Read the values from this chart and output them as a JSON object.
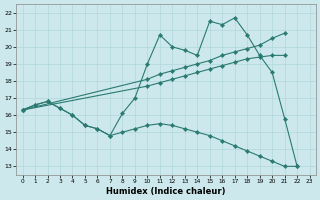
{
  "xlabel": "Humidex (Indice chaleur)",
  "bg_color": "#cce8ec",
  "line_color": "#2a7a72",
  "grid_color": "#b0d8dc",
  "xlim": [
    -0.5,
    23.5
  ],
  "ylim": [
    12.5,
    22.5
  ],
  "xticks": [
    0,
    1,
    2,
    3,
    4,
    5,
    6,
    7,
    8,
    9,
    10,
    11,
    12,
    13,
    14,
    15,
    16,
    17,
    18,
    19,
    20,
    21,
    22,
    23
  ],
  "yticks": [
    13,
    14,
    15,
    16,
    17,
    18,
    19,
    20,
    21,
    22
  ],
  "series": [
    {
      "x": [
        0,
        1,
        2,
        3,
        4,
        5,
        6,
        7,
        8,
        9,
        10,
        11,
        12,
        13,
        14,
        15,
        16,
        17,
        18,
        19,
        20,
        21,
        22
      ],
      "y": [
        16.3,
        16.6,
        16.8,
        16.4,
        16.0,
        15.4,
        15.2,
        14.8,
        15.0,
        15.2,
        15.4,
        15.5,
        15.4,
        15.2,
        15.0,
        14.8,
        14.5,
        14.2,
        13.9,
        13.6,
        13.3,
        13.0,
        13.0
      ]
    },
    {
      "x": [
        0,
        1,
        2,
        3,
        4,
        5,
        6,
        7,
        8,
        9,
        10,
        11,
        12,
        13,
        14,
        15,
        16,
        17,
        18,
        19,
        20,
        21,
        22
      ],
      "y": [
        16.3,
        16.6,
        16.8,
        16.4,
        16.0,
        15.4,
        15.2,
        14.8,
        16.1,
        17.0,
        19.0,
        20.7,
        20.0,
        19.8,
        19.5,
        21.5,
        21.3,
        21.7,
        20.7,
        19.5,
        18.5,
        15.8,
        13.0
      ]
    },
    {
      "x": [
        0,
        10,
        11,
        12,
        13,
        14,
        15,
        16,
        17,
        18,
        19,
        20,
        21
      ],
      "y": [
        16.3,
        18.1,
        18.4,
        18.6,
        18.8,
        19.0,
        19.2,
        19.5,
        19.7,
        19.9,
        20.1,
        20.5,
        20.8
      ]
    },
    {
      "x": [
        0,
        10,
        11,
        12,
        13,
        14,
        15,
        16,
        17,
        18,
        19,
        20,
        21
      ],
      "y": [
        16.3,
        17.7,
        17.9,
        18.1,
        18.3,
        18.5,
        18.7,
        18.9,
        19.1,
        19.3,
        19.4,
        19.5,
        19.5
      ]
    }
  ]
}
